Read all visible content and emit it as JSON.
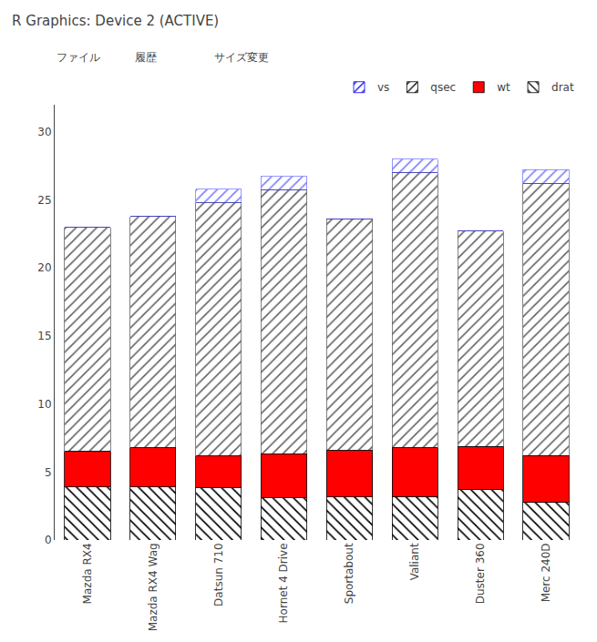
{
  "chart_data": {
    "type": "bar",
    "title": "R Graphics: Device 2 (ACTIVE)",
    "annotations": [
      "ファイル",
      "履歴",
      "サイズ変更"
    ],
    "categories": [
      "Mazda RX4",
      "Mazda RX4 Wag",
      "Datsun 710",
      "Hornet 4 Drive",
      "Sportabout",
      "Valiant",
      "Duster 360",
      "Merc 240D"
    ],
    "stacked": true,
    "series": [
      {
        "name": "drat",
        "color": "#ffffff",
        "values": [
          3.9,
          3.9,
          3.85,
          3.08,
          3.15,
          3.21,
          3.69,
          2.76
        ]
      },
      {
        "name": "wt",
        "color": "#ff0000",
        "values": [
          2.62,
          2.875,
          2.32,
          3.215,
          3.44,
          3.57,
          3.19,
          3.46
        ]
      },
      {
        "name": "qsec",
        "color": "#00cc00",
        "values": [
          16.46,
          17.02,
          18.61,
          19.44,
          17.02,
          20.22,
          15.84,
          20.0
        ]
      },
      {
        "name": "vs",
        "color": "#aaaaff",
        "values": [
          0,
          0,
          1,
          1,
          0,
          1,
          0,
          1
        ]
      }
    ],
    "ylim": [
      0,
      32
    ],
    "yticks": [
      0,
      5,
      10,
      15,
      20,
      25,
      30
    ],
    "grid": false,
    "legend": "upper right"
  }
}
